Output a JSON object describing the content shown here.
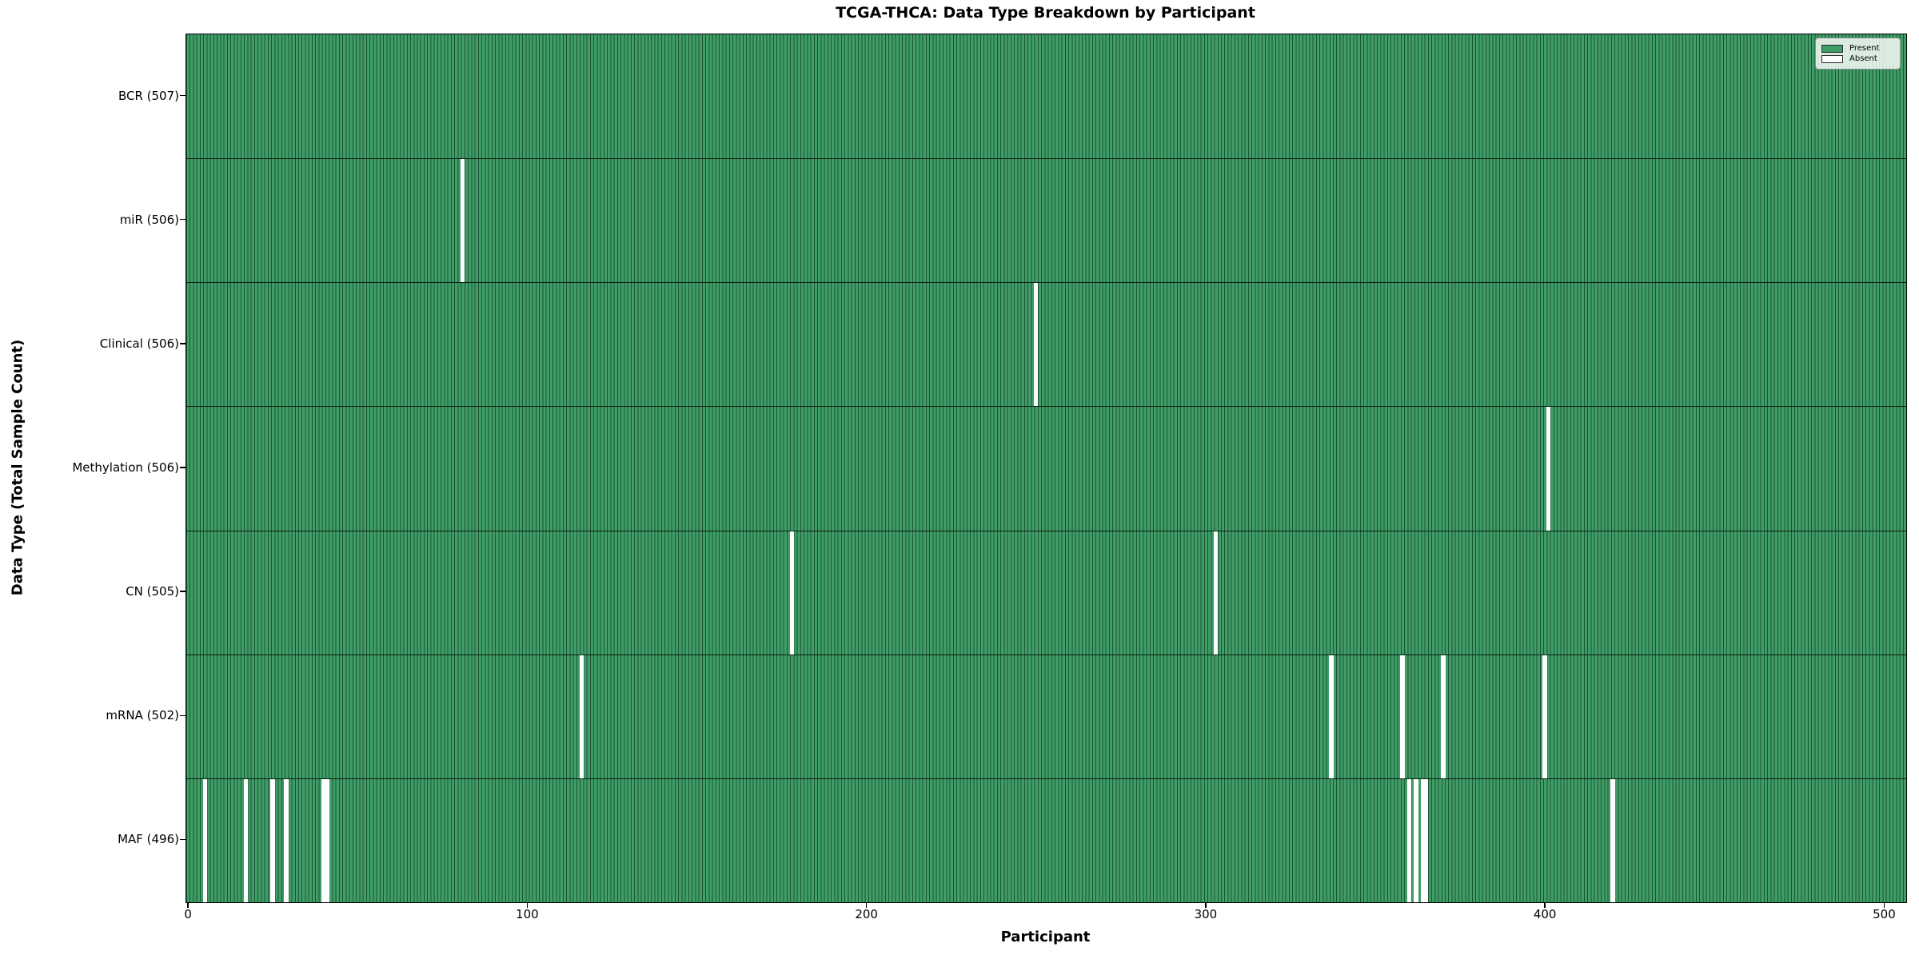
{
  "title": "TCGA-THCA: Data Type Breakdown by Participant",
  "x_axis": {
    "label": "Participant",
    "ticks": [
      0,
      100,
      200,
      300,
      400,
      500
    ]
  },
  "y_axis": {
    "label": "Data Type (Total Sample Count)"
  },
  "legend": {
    "items": [
      {
        "label": "Present",
        "color": "#3f9e67"
      },
      {
        "label": "Absent",
        "color": "#ffffff"
      }
    ]
  },
  "colors": {
    "present_fill": "#3f9e67",
    "bar_edge": "#1c5434",
    "absent_fill": "#ffffff",
    "separator": "#0a1f12"
  },
  "chart_data": {
    "type": "heatmap",
    "title": "TCGA-THCA: Data Type Breakdown by Participant",
    "xlabel": "Participant",
    "ylabel": "Data Type (Total Sample Count)",
    "total_participants": 507,
    "x_range": [
      0,
      507
    ],
    "legend_position": "upper right",
    "value_encoding": {
      "present": "green bar",
      "absent": "white gap"
    },
    "rows": [
      {
        "label": "BCR (507)",
        "data_type": "BCR",
        "count": 507,
        "absent_participants": []
      },
      {
        "label": "miR (506)",
        "data_type": "miR",
        "count": 506,
        "absent_participants": [
          81
        ]
      },
      {
        "label": "Clinical (506)",
        "data_type": "Clinical",
        "count": 506,
        "absent_participants": [
          250
        ]
      },
      {
        "label": "Methylation (506)",
        "data_type": "Methylation",
        "count": 506,
        "absent_participants": [
          401
        ]
      },
      {
        "label": "CN (505)",
        "data_type": "CN",
        "count": 505,
        "absent_participants": [
          178,
          303
        ]
      },
      {
        "label": "mRNA (502)",
        "data_type": "mRNA",
        "count": 502,
        "absent_participants": [
          116,
          337,
          358,
          370,
          400
        ]
      },
      {
        "label": "MAF (496)",
        "data_type": "MAF",
        "count": 496,
        "absent_participants": [
          5,
          17,
          25,
          29,
          40,
          41,
          360,
          362,
          364,
          365,
          420
        ]
      }
    ]
  }
}
